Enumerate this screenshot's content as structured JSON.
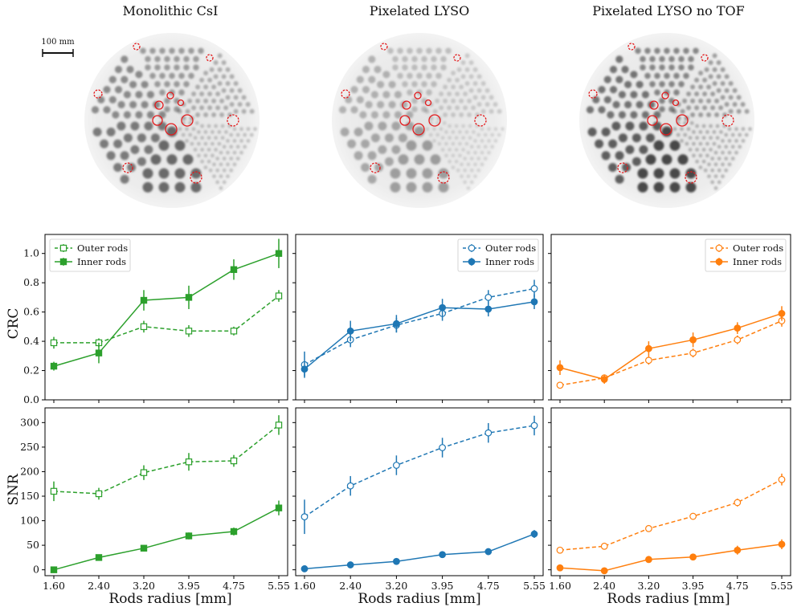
{
  "column_titles": [
    "Monolithic CsI",
    "Pixelated LYSO",
    "Pixelated LYSO no TOF"
  ],
  "scale_bar_label": "100 mm",
  "colors": {
    "csi": "#2ca02c",
    "lyso": "#1f77b4",
    "notof": "#ff7f0e",
    "roi": "#e31a1c"
  },
  "chart_data": [
    {
      "type": "line",
      "row": "CRC",
      "column": "Monolithic CsI",
      "color": "#2ca02c",
      "marker": "square",
      "x_tick_labels": [
        "1.60",
        "2.40",
        "3.20",
        "3.95",
        "4.75",
        "5.55"
      ],
      "ylabel": "CRC",
      "ylim": [
        0,
        1.13
      ],
      "yticks": [
        "0.0",
        "0.2",
        "0.4",
        "0.6",
        "0.8",
        "1.0"
      ],
      "legend_position": "top-left",
      "series": [
        {
          "name": "Outer rods",
          "style": "dashed-open",
          "values": [
            0.39,
            0.39,
            0.5,
            0.47,
            0.47,
            0.71
          ],
          "errors": [
            0.04,
            0.03,
            0.04,
            0.04,
            0.03,
            0.04
          ]
        },
        {
          "name": "Inner rods",
          "style": "solid-filled",
          "values": [
            0.23,
            0.32,
            0.68,
            0.7,
            0.89,
            1.0
          ],
          "errors": [
            0.03,
            0.07,
            0.07,
            0.08,
            0.07,
            0.1
          ]
        }
      ]
    },
    {
      "type": "line",
      "row": "CRC",
      "column": "Pixelated LYSO",
      "color": "#1f77b4",
      "marker": "circle",
      "x_tick_labels": [
        "1.60",
        "2.40",
        "3.20",
        "3.95",
        "4.75",
        "5.55"
      ],
      "ylim": [
        0,
        1.13
      ],
      "legend_position": "top-right",
      "series": [
        {
          "name": "Outer rods",
          "style": "dashed-open",
          "values": [
            0.24,
            0.41,
            0.51,
            0.59,
            0.7,
            0.76
          ],
          "errors": [
            0.09,
            0.05,
            0.05,
            0.05,
            0.05,
            0.06
          ]
        },
        {
          "name": "Inner rods",
          "style": "solid-filled",
          "values": [
            0.21,
            0.47,
            0.52,
            0.63,
            0.62,
            0.67
          ],
          "errors": [
            0.05,
            0.07,
            0.06,
            0.06,
            0.05,
            0.05
          ]
        }
      ]
    },
    {
      "type": "line",
      "row": "CRC",
      "column": "Pixelated LYSO no TOF",
      "color": "#ff7f0e",
      "marker": "circle",
      "x_tick_labels": [
        "1.60",
        "2.40",
        "3.20",
        "3.95",
        "4.75",
        "5.55"
      ],
      "ylim": [
        0,
        1.13
      ],
      "legend_position": "top-right",
      "series": [
        {
          "name": "Outer rods",
          "style": "dashed-open",
          "values": [
            0.1,
            0.15,
            0.27,
            0.32,
            0.41,
            0.54
          ],
          "errors": [
            0.01,
            0.02,
            0.03,
            0.03,
            0.03,
            0.04
          ]
        },
        {
          "name": "Inner rods",
          "style": "solid-filled",
          "values": [
            0.22,
            0.14,
            0.35,
            0.41,
            0.49,
            0.59
          ],
          "errors": [
            0.05,
            0.03,
            0.05,
            0.05,
            0.04,
            0.05
          ]
        }
      ]
    },
    {
      "type": "line",
      "row": "SNR",
      "column": "Monolithic CsI",
      "color": "#2ca02c",
      "marker": "square",
      "x_tick_labels": [
        "1.60",
        "2.40",
        "3.20",
        "3.95",
        "4.75",
        "5.55"
      ],
      "xlabel": "Rods radius [mm]",
      "ylabel": "SNR",
      "ylim": [
        -12,
        330
      ],
      "yticks": [
        "0",
        "50",
        "100",
        "150",
        "200",
        "250",
        "300"
      ],
      "series": [
        {
          "name": "Outer rods",
          "style": "dashed-open",
          "values": [
            160,
            155,
            198,
            220,
            222,
            295
          ],
          "errors": [
            20,
            12,
            15,
            18,
            12,
            20
          ]
        },
        {
          "name": "Inner rods",
          "style": "solid-filled",
          "values": [
            0,
            25,
            44,
            69,
            78,
            126
          ],
          "errors": [
            3,
            3,
            4,
            7,
            8,
            15
          ]
        }
      ]
    },
    {
      "type": "line",
      "row": "SNR",
      "column": "Pixelated LYSO",
      "color": "#1f77b4",
      "marker": "circle",
      "x_tick_labels": [
        "1.60",
        "2.40",
        "3.20",
        "3.95",
        "4.75",
        "5.55"
      ],
      "xlabel": "Rods radius [mm]",
      "ylim": [
        -12,
        330
      ],
      "series": [
        {
          "name": "Outer rods",
          "style": "dashed-open",
          "values": [
            108,
            171,
            213,
            249,
            279,
            294
          ],
          "errors": [
            35,
            20,
            20,
            20,
            20,
            20
          ]
        },
        {
          "name": "Inner rods",
          "style": "solid-filled",
          "values": [
            2,
            10,
            17,
            31,
            37,
            73
          ],
          "errors": [
            2,
            2,
            3,
            4,
            4,
            8
          ]
        }
      ]
    },
    {
      "type": "line",
      "row": "SNR",
      "column": "Pixelated LYSO no TOF",
      "color": "#ff7f0e",
      "marker": "circle",
      "x_tick_labels": [
        "1.60",
        "2.40",
        "3.20",
        "3.95",
        "4.75",
        "5.55"
      ],
      "xlabel": "Rods radius [mm]",
      "ylim": [
        -12,
        330
      ],
      "series": [
        {
          "name": "Outer rods",
          "style": "dashed-open",
          "values": [
            40,
            48,
            84,
            109,
            137,
            184
          ],
          "errors": [
            3,
            3,
            5,
            5,
            8,
            12
          ]
        },
        {
          "name": "Inner rods",
          "style": "solid-filled",
          "values": [
            4,
            -2,
            21,
            26,
            40,
            52
          ],
          "errors": [
            4,
            3,
            6,
            7,
            9,
            10
          ]
        }
      ]
    }
  ]
}
